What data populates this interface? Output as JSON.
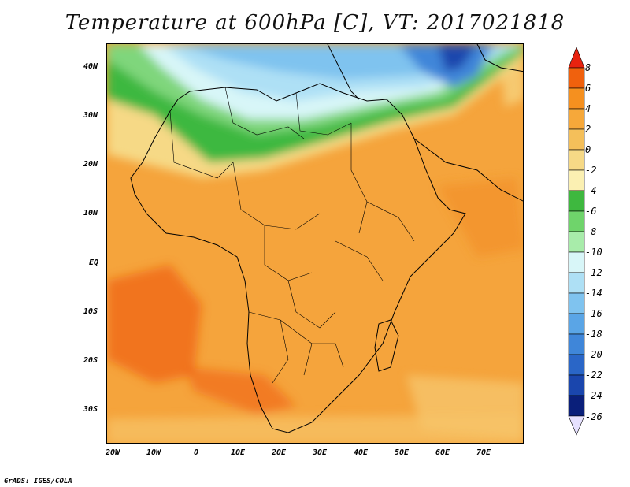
{
  "title": "Temperature at 600hPa [C], VT: 2017021818",
  "credit": "GrADS: IGES/COLA",
  "lat_labels": [
    "40N",
    "30N",
    "20N",
    "10N",
    "EQ",
    "10S",
    "20S",
    "30S"
  ],
  "lon_labels": [
    "20W",
    "10W",
    "0",
    "10E",
    "20E",
    "30E",
    "40E",
    "50E",
    "60E",
    "70E"
  ],
  "colorbar": {
    "labels": [
      "8",
      "6",
      "4",
      "2",
      "0",
      "-2",
      "-4",
      "-6",
      "-8",
      "-10",
      "-12",
      "-14",
      "-16",
      "-18",
      "-20",
      "-22",
      "-24",
      "-26"
    ],
    "colors": [
      "#e8230f",
      "#f0610d",
      "#f5901f",
      "#f6a83a",
      "#f4bf5a",
      "#f6d986",
      "#fbf0b2",
      "#3eb83f",
      "#6fd46b",
      "#a8ecaa",
      "#d8f6f8",
      "#aee0f5",
      "#7fc3ef",
      "#5aa5e6",
      "#3f86d9",
      "#2a66c7",
      "#1a46ad",
      "#0a1f7a",
      "#e6e1ff"
    ]
  }
}
